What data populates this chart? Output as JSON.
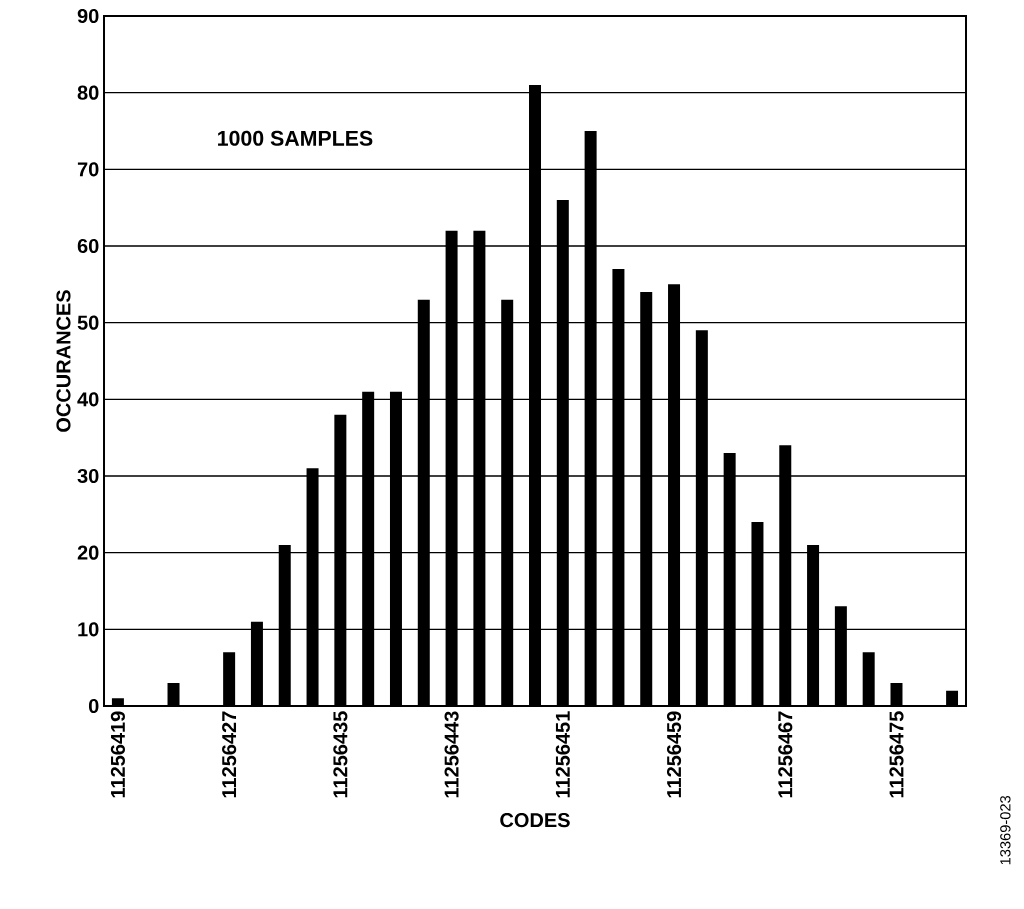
{
  "chart_data": {
    "type": "bar",
    "xlabel": "CODES",
    "ylabel": "OCCURANCES",
    "annotations": [
      "1000 SAMPLES",
      "13369-023"
    ],
    "x": [
      11256419,
      11256423,
      11256427,
      11256429,
      11256431,
      11256433,
      11256435,
      11256437,
      11256439,
      11256441,
      11256443,
      11256445,
      11256447,
      11256449,
      11256451,
      11256453,
      11256455,
      11256457,
      11256459,
      11256461,
      11256463,
      11256465,
      11256467,
      11256469,
      11256471,
      11256473,
      11256475,
      11256479
    ],
    "values": [
      1,
      3,
      7,
      11,
      21,
      31,
      38,
      41,
      41,
      53,
      62,
      62,
      53,
      81,
      66,
      75,
      57,
      54,
      55,
      49,
      33,
      24,
      34,
      21,
      13,
      7,
      3,
      2
    ],
    "color": "#000000",
    "xlim": [
      11256418,
      11256480
    ],
    "xticks": [
      11256419,
      11256427,
      11256435,
      11256443,
      11256451,
      11256459,
      11256467,
      11256475
    ],
    "ylim": [
      0,
      90
    ],
    "yticks": [
      0,
      10,
      20,
      30,
      40,
      50,
      60,
      70,
      80,
      90
    ],
    "grid": "y"
  }
}
